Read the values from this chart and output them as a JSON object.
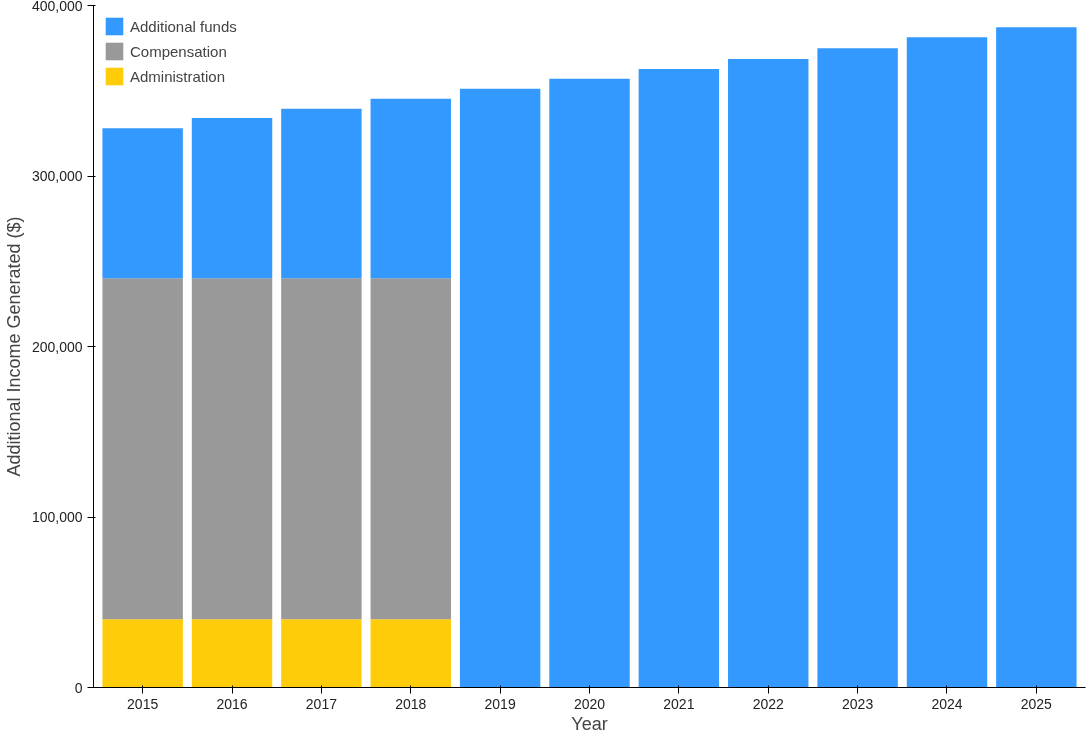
{
  "chart_data": {
    "type": "bar",
    "stacked": true,
    "xlabel": "Year",
    "ylabel": "Additional Income Generated ($)",
    "categories": [
      "2015",
      "2016",
      "2017",
      "2018",
      "2019",
      "2020",
      "2021",
      "2022",
      "2023",
      "2024",
      "2025"
    ],
    "series": [
      {
        "name": "Administration",
        "color": "#ffcc0a",
        "values": [
          40000,
          40000,
          40000,
          40000,
          null,
          null,
          null,
          null,
          null,
          null,
          null
        ]
      },
      {
        "name": "Compensation",
        "color": "#999999",
        "values": [
          200000,
          200000,
          200000,
          200000,
          null,
          null,
          null,
          null,
          null,
          null,
          null
        ]
      },
      {
        "name": "Additional funds",
        "color": "#3399ff",
        "values": [
          88000,
          94000,
          99500,
          105300,
          351200,
          357000,
          362800,
          368600,
          375000,
          381400,
          387200
        ]
      }
    ],
    "ylim": [
      0,
      400000
    ],
    "yticks": [
      {
        "value": 0,
        "label": "0"
      },
      {
        "value": 100000,
        "label": "100,000"
      },
      {
        "value": 200000,
        "label": "200,000"
      },
      {
        "value": 300000,
        "label": "300,000"
      },
      {
        "value": 400000,
        "label": "400,000"
      }
    ],
    "grid": false,
    "legend": "top left"
  }
}
